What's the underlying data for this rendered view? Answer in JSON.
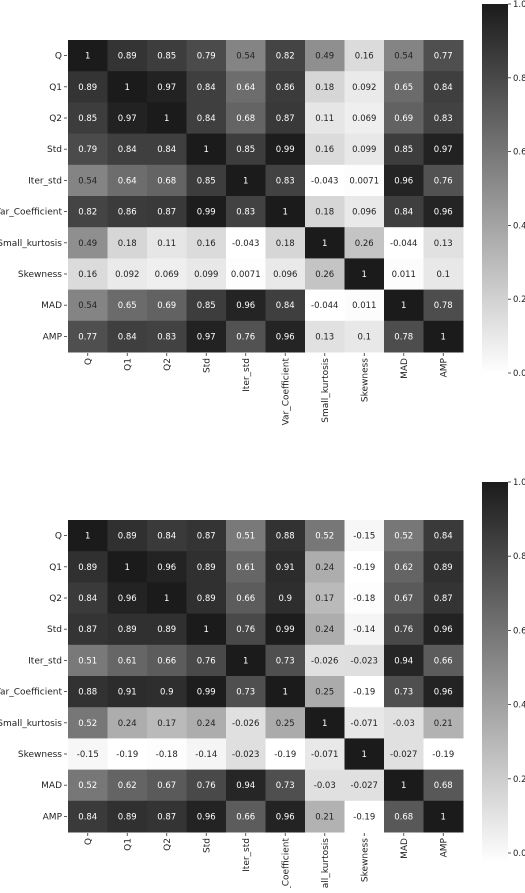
{
  "chart_data": [
    {
      "type": "heatmap",
      "row_labels": [
        "Q",
        "Q1",
        "Q2",
        "Std",
        "Iter_std",
        "Var_Coefficient",
        "Small_kurtosis",
        "Skewness",
        "MAD",
        "AMP"
      ],
      "col_labels": [
        "Q",
        "Q1",
        "Q2",
        "Std",
        "Iter_std",
        "Var_Coefficient",
        "Small_kurtosis",
        "Skewness",
        "MAD",
        "AMP"
      ],
      "values": [
        [
          "1",
          "0.89",
          "0.85",
          "0.79",
          "0.54",
          "0.82",
          "0.49",
          "0.16",
          "0.54",
          "0.77"
        ],
        [
          "0.89",
          "1",
          "0.97",
          "0.84",
          "0.64",
          "0.86",
          "0.18",
          "0.092",
          "0.65",
          "0.84"
        ],
        [
          "0.85",
          "0.97",
          "1",
          "0.84",
          "0.68",
          "0.87",
          "0.11",
          "0.069",
          "0.69",
          "0.83"
        ],
        [
          "0.79",
          "0.84",
          "0.84",
          "1",
          "0.85",
          "0.99",
          "0.16",
          "0.099",
          "0.85",
          "0.97"
        ],
        [
          "0.54",
          "0.64",
          "0.68",
          "0.85",
          "1",
          "0.83",
          "-0.043",
          "0.0071",
          "0.96",
          "0.76"
        ],
        [
          "0.82",
          "0.86",
          "0.87",
          "0.99",
          "0.83",
          "1",
          "0.18",
          "0.096",
          "0.84",
          "0.96"
        ],
        [
          "0.49",
          "0.18",
          "0.11",
          "0.16",
          "-0.043",
          "0.18",
          "1",
          "0.26",
          "-0.044",
          "0.13"
        ],
        [
          "0.16",
          "0.092",
          "0.069",
          "0.099",
          "0.0071",
          "0.096",
          "0.26",
          "1",
          "0.011",
          "0.1"
        ],
        [
          "0.54",
          "0.65",
          "0.69",
          "0.85",
          "0.96",
          "0.84",
          "-0.044",
          "0.011",
          "1",
          "0.78"
        ],
        [
          "0.77",
          "0.84",
          "0.83",
          "0.97",
          "0.76",
          "0.96",
          "0.13",
          "0.1",
          "0.78",
          "1"
        ]
      ],
      "colorbar": {
        "ticks": [
          "0.0",
          "0.2",
          "0.4",
          "0.6",
          "0.8",
          "1.0"
        ],
        "range": [
          0.0,
          1.0
        ]
      },
      "colormap": "white-to-black"
    },
    {
      "type": "heatmap",
      "row_labels": [
        "Q",
        "Q1",
        "Q2",
        "Std",
        "Iter_std",
        "Var_Coefficient",
        "Small_kurtosis",
        "Skewness",
        "MAD",
        "AMP"
      ],
      "col_labels": [
        "Q",
        "Q1",
        "Q2",
        "Std",
        "Iter_std",
        "Var_Coefficient",
        "Small_kurtosis",
        "Skewness",
        "MAD",
        "AMP"
      ],
      "values": [
        [
          "1",
          "0.89",
          "0.84",
          "0.87",
          "0.51",
          "0.88",
          "0.52",
          "-0.15",
          "0.52",
          "0.84"
        ],
        [
          "0.89",
          "1",
          "0.96",
          "0.89",
          "0.61",
          "0.91",
          "0.24",
          "-0.19",
          "0.62",
          "0.89"
        ],
        [
          "0.84",
          "0.96",
          "1",
          "0.89",
          "0.66",
          "0.9",
          "0.17",
          "-0.18",
          "0.67",
          "0.87"
        ],
        [
          "0.87",
          "0.89",
          "0.89",
          "1",
          "0.76",
          "0.99",
          "0.24",
          "-0.14",
          "0.76",
          "0.96"
        ],
        [
          "0.51",
          "0.61",
          "0.66",
          "0.76",
          "1",
          "0.73",
          "-0.026",
          "-0.023",
          "0.94",
          "0.66"
        ],
        [
          "0.88",
          "0.91",
          "0.9",
          "0.99",
          "0.73",
          "1",
          "0.25",
          "-0.19",
          "0.73",
          "0.96"
        ],
        [
          "0.52",
          "0.24",
          "0.17",
          "0.24",
          "-0.026",
          "0.25",
          "1",
          "-0.071",
          "-0.03",
          "0.21"
        ],
        [
          "-0.15",
          "-0.19",
          "-0.18",
          "-0.14",
          "-0.023",
          "-0.19",
          "-0.071",
          "1",
          "-0.027",
          "-0.19"
        ],
        [
          "0.52",
          "0.62",
          "0.67",
          "0.76",
          "0.94",
          "0.73",
          "-0.03",
          "-0.027",
          "1",
          "0.68"
        ],
        [
          "0.84",
          "0.89",
          "0.87",
          "0.96",
          "0.66",
          "0.96",
          "0.21",
          "-0.19",
          "0.68",
          "1"
        ]
      ],
      "colorbar": {
        "ticks": [
          "0.0",
          "0.2",
          "0.4",
          "0.6",
          "0.8",
          "1.0"
        ],
        "range": [
          -0.19,
          1.0
        ]
      },
      "colormap": "white-to-black"
    }
  ]
}
